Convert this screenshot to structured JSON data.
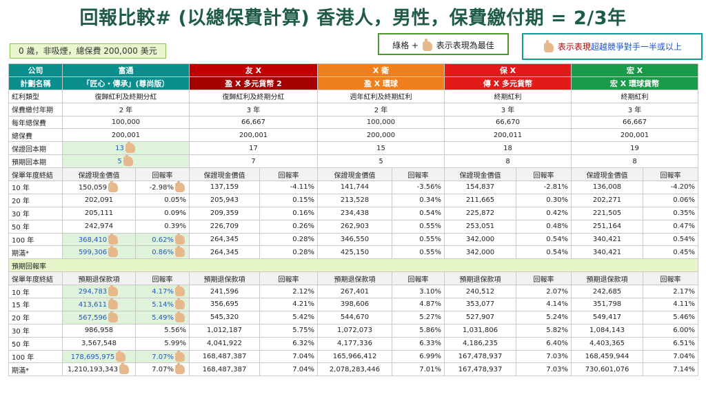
{
  "title": "回報比較# (以總保費計算) 香港人，男性，保費繳付期 = 2/3年",
  "info": "0 歲，非吸煙，總保費 200,000 美元",
  "legend1": {
    "prefix": "綠格 +",
    "suffix": "表示表現為最佳"
  },
  "legend2": {
    "prefix": "表示表現",
    "blue": "超越競爭對手一半或以上"
  },
  "companies": [
    "富通",
    "友 X",
    "X 衛",
    "保 X",
    "宏 X"
  ],
  "plans": [
    "「匠心・傳承」(尊尚版）",
    "盈 X 多元貨幣 2",
    "盈 X 環球",
    "傳 X 多元貨幣",
    "宏 X 環球貨幣"
  ],
  "row_labels": {
    "company": "公司",
    "plan": "計劃名稱",
    "dividend": "紅利類型",
    "pay_period": "保費繳付年期",
    "annual": "每年總保費",
    "total": "總保費",
    "guaranteed_be": "保證回本期",
    "expected_be": "預期回本期",
    "year_end": "保單年度終結",
    "expected_return": "預期回報率"
  },
  "dividend_types": [
    "復歸紅利及終期分紅",
    "復歸紅利及終期分紅",
    "週年紅利及終期紅利",
    "終期紅利",
    "終期紅利"
  ],
  "pay_periods": [
    "2 年",
    "3 年",
    "2 年",
    "3 年",
    "3 年"
  ],
  "annual_premium": [
    "100,000",
    "66,667",
    "100,000",
    "66,670",
    "66,667"
  ],
  "total_premium": [
    "200,001",
    "200,001",
    "200,000",
    "200,011",
    "200,001"
  ],
  "guaranteed_breakeven": [
    "13",
    "17",
    "15",
    "18",
    "19"
  ],
  "expected_breakeven": [
    "5",
    "7",
    "5",
    "8",
    "8"
  ],
  "guaranteed_headers": [
    "保證現金價值",
    "回報率"
  ],
  "expected_headers": [
    "預期退保款項",
    "回報率"
  ],
  "guaranteed_rows": [
    {
      "year": "10 年",
      "vals": [
        "150,059",
        "-2.98%",
        "137,159",
        "-4.11%",
        "141,744",
        "-3.56%",
        "154,837",
        "-2.81%",
        "136,008",
        "-4.20%"
      ]
    },
    {
      "year": "20 年",
      "vals": [
        "202,091",
        "0.05%",
        "205,943",
        "0.15%",
        "213,528",
        "0.34%",
        "211,665",
        "0.30%",
        "202,271",
        "0.06%"
      ]
    },
    {
      "year": "30 年",
      "vals": [
        "205,111",
        "0.09%",
        "209,359",
        "0.16%",
        "234,438",
        "0.54%",
        "225,872",
        "0.42%",
        "221,505",
        "0.35%"
      ]
    },
    {
      "year": "50 年",
      "vals": [
        "242,974",
        "0.39%",
        "226,709",
        "0.26%",
        "262,903",
        "0.55%",
        "253,051",
        "0.48%",
        "251,164",
        "0.47%"
      ]
    },
    {
      "year": "100 年",
      "vals": [
        "368,410",
        "0.62%",
        "264,345",
        "0.28%",
        "346,550",
        "0.55%",
        "342,000",
        "0.54%",
        "340,421",
        "0.54%"
      ]
    },
    {
      "year": "期滿*",
      "vals": [
        "599,306",
        "0.86%",
        "264,345",
        "0.28%",
        "425,150",
        "0.55%",
        "342,000",
        "0.54%",
        "340,421",
        "0.45%"
      ]
    }
  ],
  "expected_rows": [
    {
      "year": "10 年",
      "vals": [
        "294,783",
        "4.17%",
        "241,596",
        "2.12%",
        "267,401",
        "3.10%",
        "240,512",
        "2.07%",
        "242,685",
        "2.17%"
      ]
    },
    {
      "year": "15 年",
      "vals": [
        "413,611",
        "5.14%",
        "356,695",
        "4.21%",
        "398,606",
        "4.87%",
        "353,077",
        "4.14%",
        "351,798",
        "4.11%"
      ]
    },
    {
      "year": "20 年",
      "vals": [
        "567,596",
        "5.49%",
        "545,320",
        "5.42%",
        "544,670",
        "5.27%",
        "527,907",
        "5.24%",
        "549,417",
        "5.46%"
      ]
    },
    {
      "year": "30 年",
      "vals": [
        "986,958",
        "5.56%",
        "1,012,187",
        "5.75%",
        "1,072,073",
        "5.86%",
        "1,031,806",
        "5.82%",
        "1,084,143",
        "6.00%"
      ]
    },
    {
      "year": "50 年",
      "vals": [
        "3,567,548",
        "5.99%",
        "4,041,922",
        "6.32%",
        "4,177,336",
        "6.33%",
        "4,186,235",
        "6.40%",
        "4,403,365",
        "6.51%"
      ]
    },
    {
      "year": "100 年",
      "vals": [
        "178,695,975",
        "7.07%",
        "168,487,387",
        "7.04%",
        "165,966,412",
        "6.99%",
        "167,478,937",
        "7.03%",
        "168,459,944",
        "7.04%"
      ]
    },
    {
      "year": "期滿*",
      "vals": [
        "1,210,193,343",
        "7.07%",
        "168,487,387",
        "7.04%",
        "2,078,283,446",
        "7.01%",
        "167,478,937",
        "7.03%",
        "730,601,076",
        "7.14%"
      ]
    }
  ],
  "colors": {
    "title": "#1f5c45",
    "teal": "#0a8d8d",
    "red": "#c00000",
    "orange": "#f0801e",
    "green": "#1b9a4a"
  }
}
